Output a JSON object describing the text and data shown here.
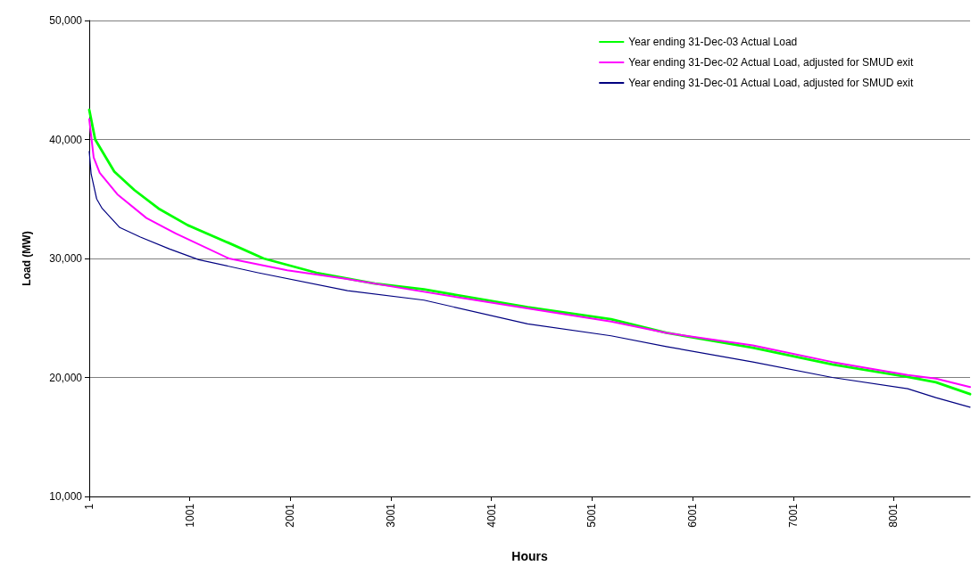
{
  "chart_data": {
    "type": "line",
    "xlabel": "Hours",
    "ylabel": "Load (MW)",
    "xlim": [
      1,
      8760
    ],
    "xticks": [
      1,
      1001,
      2001,
      3001,
      4001,
      5001,
      6001,
      7001,
      8001
    ],
    "ylim": [
      10000,
      50000
    ],
    "yticks": [
      {
        "value": 10000,
        "label": "10,000"
      },
      {
        "value": 20000,
        "label": "20,000"
      },
      {
        "value": 30000,
        "label": "30,000"
      },
      {
        "value": 40000,
        "label": "40,000"
      },
      {
        "value": 50000,
        "label": "50,000"
      }
    ],
    "grid": "y",
    "legend": "top right",
    "marker": "none",
    "line_style": "solid",
    "series": [
      {
        "name": "Year ending 31-Dec-03 Actual Load",
        "color": "#00ff00",
        "x": [
          1,
          60,
          250,
          450,
          690,
          980,
          1390,
          1735,
          2260,
          2840,
          3330,
          4360,
          5190,
          5740,
          6600,
          7390,
          8140,
          8420,
          8760
        ],
        "values": [
          42500,
          40000,
          37300,
          35750,
          34200,
          32800,
          31300,
          30000,
          28800,
          27900,
          27400,
          25900,
          24900,
          23750,
          22500,
          21100,
          20050,
          19600,
          18600
        ]
      },
      {
        "name": "Year ending 31-Dec-02 Actual Load, adjusted for SMUD exit",
        "color": "#ff00ff",
        "x": [
          1,
          45,
          105,
          280,
          570,
          860,
          1390,
          1970,
          2550,
          3330,
          4360,
          5190,
          5740,
          6600,
          7390,
          8140,
          8420,
          8760
        ],
        "values": [
          41700,
          38500,
          37200,
          35400,
          33400,
          32100,
          30000,
          29000,
          28300,
          27200,
          25800,
          24700,
          23750,
          22700,
          21300,
          20200,
          19900,
          19200
        ]
      },
      {
        "name": "Year ending 31-Dec-01 Actual Load, adjusted for SMUD exit",
        "color": "#000080",
        "x": [
          1,
          20,
          75,
          130,
          305,
          510,
          800,
          1090,
          1680,
          2570,
          3330,
          4360,
          5190,
          5740,
          6600,
          7390,
          8140,
          8420,
          8760
        ],
        "values": [
          39000,
          37100,
          35000,
          34200,
          32600,
          31800,
          30800,
          29900,
          28800,
          27300,
          26500,
          24500,
          23500,
          22600,
          21300,
          20000,
          19050,
          18300,
          17500
        ]
      }
    ]
  }
}
